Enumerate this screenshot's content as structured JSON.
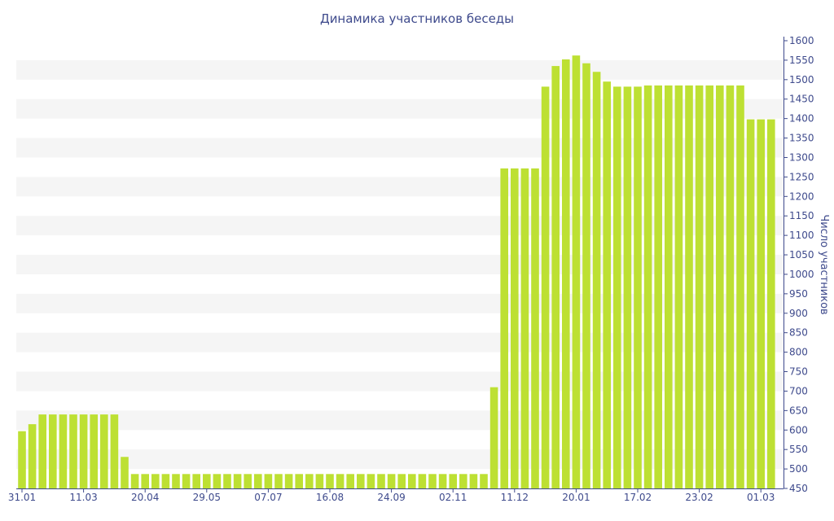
{
  "chart_data": {
    "type": "bar",
    "title": "Динамика участников беседы",
    "xlabel": "",
    "ylabel": "Число участников",
    "ylim": [
      450,
      1600
    ],
    "y_ticks": [
      500,
      550,
      600,
      650,
      700,
      750,
      800,
      850,
      900,
      950,
      1000,
      1050,
      1100,
      1150,
      1200,
      1250,
      1300,
      1350,
      1400,
      1450,
      1500,
      1550,
      1600
    ],
    "y_tick_labels": [
      "500",
      "550",
      "600",
      "650",
      "700",
      "750",
      "800",
      "850",
      "900",
      "950",
      "1000",
      "1050",
      "1100",
      "1150",
      "1200",
      "1250",
      "1300",
      "1350",
      "1400",
      "1450",
      "1500",
      "1550",
      "1600"
    ],
    "y_axis_side": "right",
    "grid": "alternating horizontal bands",
    "x_tick_labels": [
      {
        "label": "31.01",
        "index": 0
      },
      {
        "label": "11.03",
        "index": 6
      },
      {
        "label": "20.04",
        "index": 12
      },
      {
        "label": "29.05",
        "index": 18
      },
      {
        "label": "07.07",
        "index": 24
      },
      {
        "label": "16.08",
        "index": 30
      },
      {
        "label": "24.09",
        "index": 36
      },
      {
        "label": "02.11",
        "index": 42
      },
      {
        "label": "11.12",
        "index": 48
      },
      {
        "label": "20.01",
        "index": 54
      },
      {
        "label": "17.02",
        "index": 60
      },
      {
        "label": "23.02",
        "index": 66
      },
      {
        "label": "01.03",
        "index": 72
      }
    ],
    "values": [
      597,
      615,
      640,
      640,
      640,
      640,
      640,
      640,
      640,
      640,
      531,
      487,
      487,
      487,
      487,
      487,
      487,
      487,
      487,
      487,
      487,
      487,
      487,
      487,
      487,
      487,
      487,
      487,
      487,
      487,
      487,
      487,
      487,
      487,
      487,
      487,
      487,
      487,
      487,
      487,
      487,
      487,
      487,
      487,
      487,
      487,
      710,
      1272,
      1272,
      1272,
      1272,
      1482,
      1535,
      1552,
      1562,
      1542,
      1520,
      1495,
      1482,
      1482,
      1482,
      1485,
      1485,
      1485,
      1485,
      1485,
      1485,
      1485,
      1485,
      1485,
      1485,
      1398,
      1398,
      1398
    ],
    "colors": {
      "bar": "#bde033",
      "band": "#f5f5f5",
      "text": "#3e4a8c",
      "axis": "#3e4a8c"
    }
  }
}
